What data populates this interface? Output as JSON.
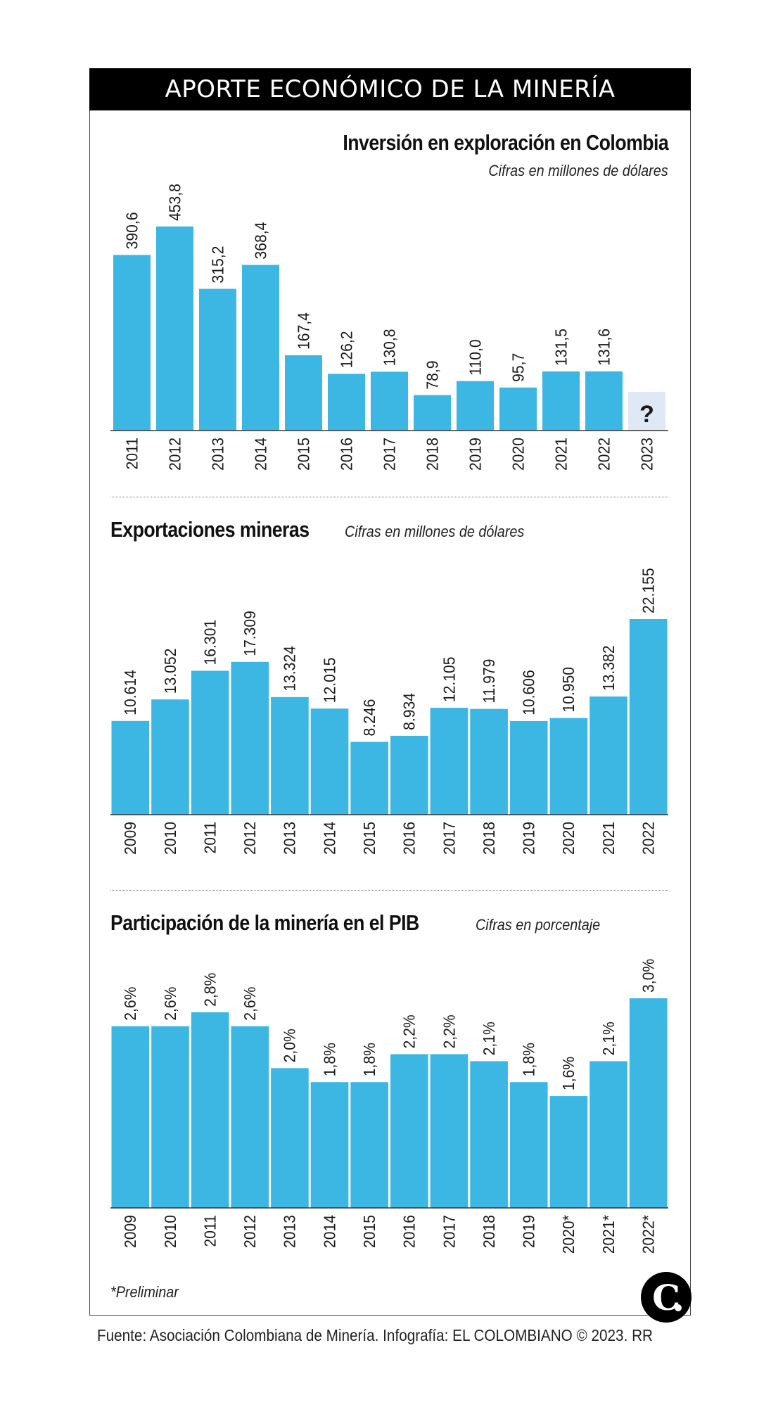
{
  "header": {
    "title": "APORTE ECONÓMICO DE LA MINERÍA"
  },
  "colors": {
    "bar": "#3cb7e4",
    "placeholder_bar": "#dfe9f5",
    "header_bg": "#000000",
    "axis": "#333333"
  },
  "charts": {
    "inversion": {
      "title": "Inversión en exploración en Colombia",
      "subtitle": "Cifras en millones de dólares"
    },
    "exportaciones": {
      "title": "Exportaciones mineras",
      "subtitle": "Cifras en millones de dólares"
    },
    "pib": {
      "title": "Participación de la minería en el PIB",
      "subtitle": "Cifras en porcentaje"
    }
  },
  "chart_data": [
    {
      "type": "bar",
      "title": "Inversión en exploración en Colombia",
      "subtitle": "Cifras en millones de dólares",
      "xlabel": "",
      "ylabel": "",
      "categories": [
        "2011",
        "2012",
        "2013",
        "2014",
        "2015",
        "2016",
        "2017",
        "2018",
        "2019",
        "2020",
        "2021",
        "2022",
        "2023"
      ],
      "values": [
        390.6,
        453.8,
        315.2,
        368.4,
        167.4,
        126.2,
        130.8,
        78.9,
        110.0,
        95.7,
        131.5,
        131.6,
        null
      ],
      "labels": [
        "390,6",
        "453,8",
        "315,2",
        "368,4",
        "167,4",
        "126,2",
        "130,8",
        "78,9",
        "110,0",
        "95,7",
        "131,5",
        "131,6",
        "?"
      ],
      "unknown_categories": [
        "2023"
      ],
      "ylim": [
        0,
        453.8
      ],
      "grid": false
    },
    {
      "type": "bar",
      "title": "Exportaciones mineras",
      "subtitle": "Cifras en millones de dólares",
      "xlabel": "",
      "ylabel": "",
      "categories": [
        "2009",
        "2010",
        "2011",
        "2012",
        "2013",
        "2014",
        "2015",
        "2016",
        "2017",
        "2018",
        "2019",
        "2020",
        "2021",
        "2022"
      ],
      "values": [
        10614,
        13052,
        16301,
        17309,
        13324,
        12015,
        8246,
        8934,
        12105,
        11979,
        10606,
        10950,
        13382,
        22155
      ],
      "labels": [
        "10.614",
        "13.052",
        "16.301",
        "17.309",
        "13.324",
        "12.015",
        "8.246",
        "8.934",
        "12.105",
        "11.979",
        "10.606",
        "10.950",
        "13.382",
        "22.155"
      ],
      "ylim": [
        0,
        22155
      ],
      "grid": false
    },
    {
      "type": "bar",
      "title": "Participación de la minería en el PIB",
      "subtitle": "Cifras en porcentaje",
      "xlabel": "",
      "ylabel": "",
      "categories": [
        "2009",
        "2010",
        "2011",
        "2012",
        "2013",
        "2014",
        "2015",
        "2016",
        "2017",
        "2018",
        "2019",
        "2020*",
        "2021*",
        "2022*"
      ],
      "values": [
        2.6,
        2.6,
        2.8,
        2.6,
        2.0,
        1.8,
        1.8,
        2.2,
        2.2,
        2.1,
        1.8,
        1.6,
        2.1,
        3.0
      ],
      "labels": [
        "2,6%",
        "2,6%",
        "2,8%",
        "2,6%",
        "2,0%",
        "1,8%",
        "1,8%",
        "2,2%",
        "2,2%",
        "2,1%",
        "1,8%",
        "1,6%",
        "2,1%",
        "3,0%"
      ],
      "ylim": [
        0,
        3.0
      ],
      "grid": false
    }
  ],
  "footnote": "*Preliminar",
  "logo": {
    "letter": "C"
  },
  "source": "Fuente: Asociación Colombiana de Minería. Infografía: EL COLOMBIANO © 2023. RR"
}
